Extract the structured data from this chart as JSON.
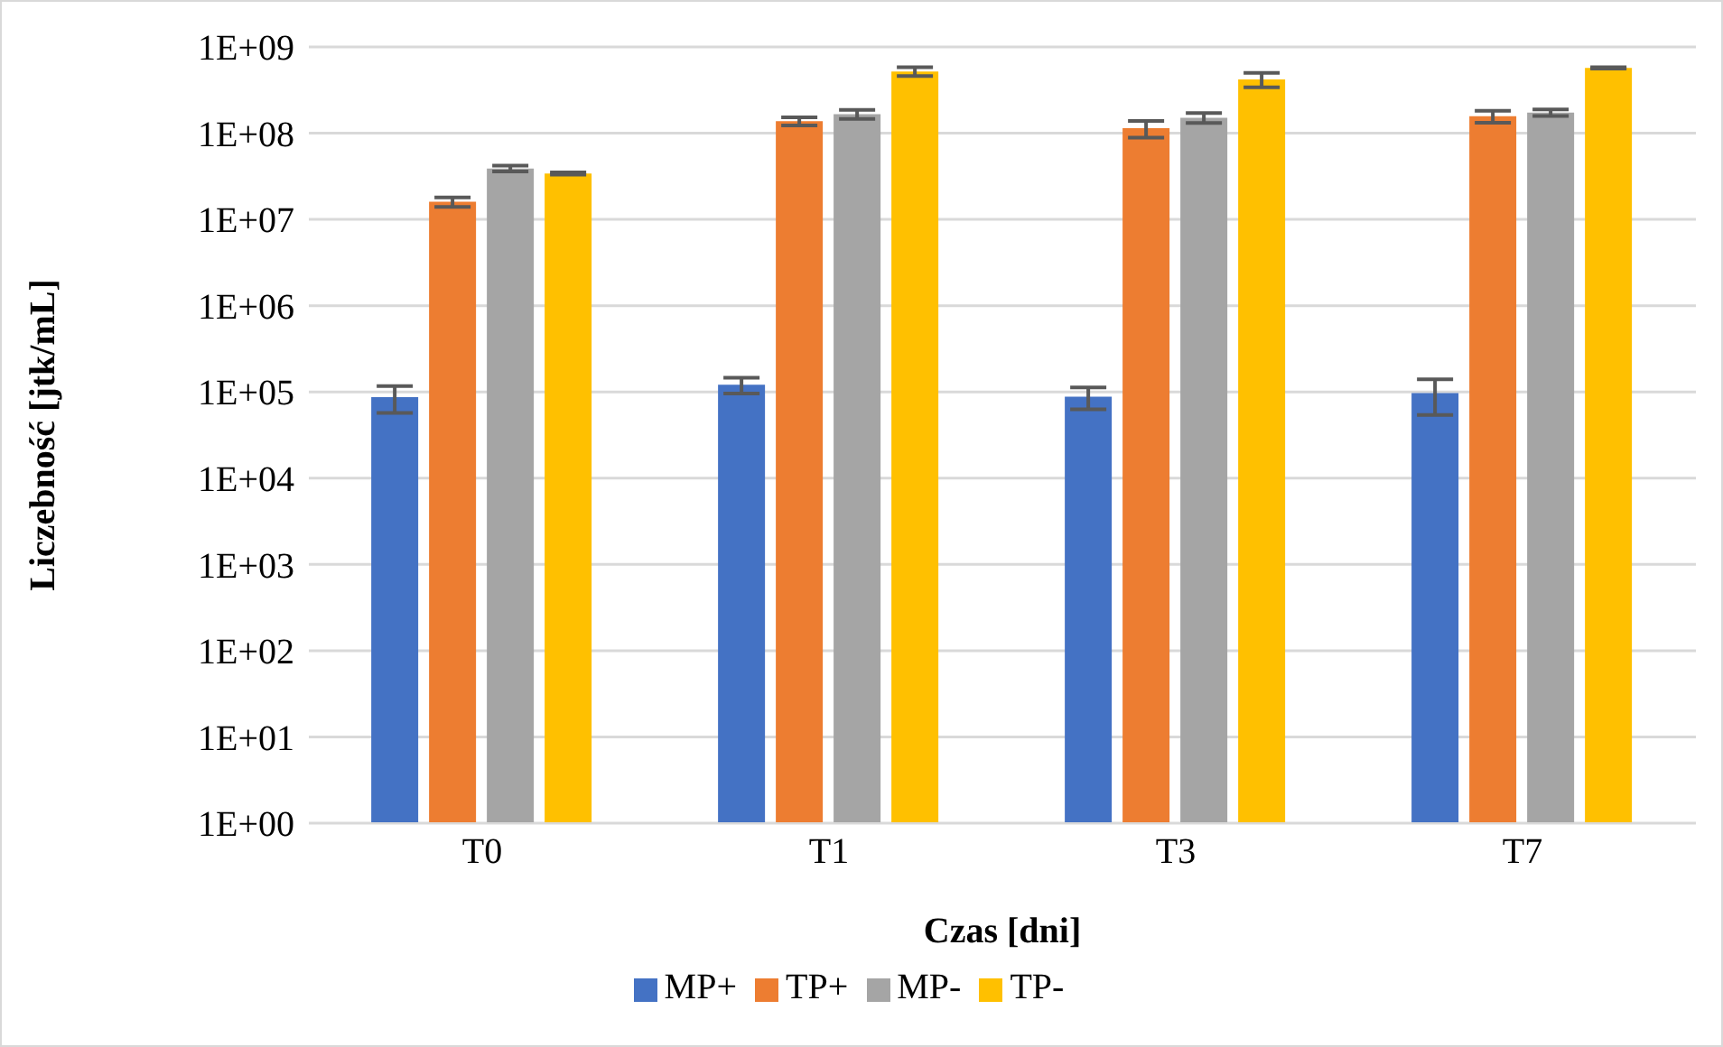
{
  "chart_data": {
    "type": "bar",
    "xlabel": "Czas [dni]",
    "ylabel": "Liczebność [jtk/mL]",
    "categories": [
      "T0",
      "T1",
      "T3",
      "T7"
    ],
    "series": [
      {
        "name": "MP+",
        "color": "#4472c4",
        "values": [
          87000,
          121000,
          88000,
          97000
        ],
        "errors": [
          30000,
          25000,
          25000,
          43000
        ]
      },
      {
        "name": "TP+",
        "color": "#ed7d31",
        "values": [
          16000000,
          138000000,
          114000000,
          157000000
        ],
        "errors": [
          2000000,
          15000000,
          25000000,
          25000000
        ]
      },
      {
        "name": "MP-",
        "color": "#a5a5a5",
        "values": [
          39000000,
          166000000,
          151000000,
          173000000
        ],
        "errors": [
          3000000,
          20000000,
          20000000,
          15000000
        ]
      },
      {
        "name": "TP-",
        "color": "#ffc000",
        "values": [
          34000000,
          520000000,
          420000000,
          570000000
        ],
        "errors": [
          1000000,
          60000000,
          80000000,
          10000000
        ]
      }
    ],
    "log": "y",
    "ylim": [
      1,
      1000000000
    ],
    "yticks": [
      {
        "value": 1,
        "label": "1E+00"
      },
      {
        "value": 10,
        "label": "1E+01"
      },
      {
        "value": 100,
        "label": "1E+02"
      },
      {
        "value": 1000,
        "label": "1E+03"
      },
      {
        "value": 10000,
        "label": "1E+04"
      },
      {
        "value": 100000,
        "label": "1E+05"
      },
      {
        "value": 1000000,
        "label": "1E+06"
      },
      {
        "value": 10000000,
        "label": "1E+07"
      },
      {
        "value": 100000000,
        "label": "1E+08"
      },
      {
        "value": 1000000000,
        "label": "1E+09"
      }
    ],
    "grid": "y",
    "legend": "bottom"
  }
}
